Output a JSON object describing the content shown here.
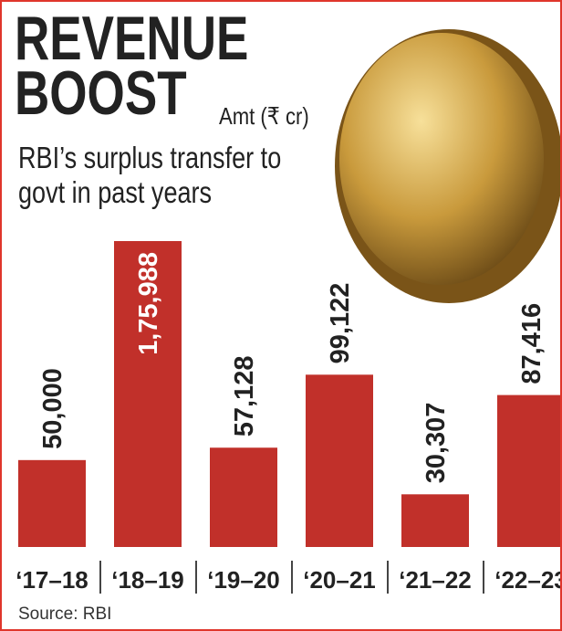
{
  "chart_data": {
    "type": "bar",
    "title": "REVENUE BOOST",
    "subtitle": "RBI’s surplus transfer to govt in past years",
    "unit_label": "Amt (₹ cr)",
    "source": "Source: RBI",
    "categories": [
      "‘17–18",
      "‘18–19",
      "‘19–20",
      "‘20–21",
      "‘21–22",
      "‘22–23"
    ],
    "values": [
      50000,
      175988,
      57128,
      99122,
      30307,
      87416
    ],
    "value_labels": [
      "50,000",
      "1,75,988",
      "57,128",
      "99,122",
      "30,307",
      "87,416"
    ],
    "color": "#c1302a"
  }
}
